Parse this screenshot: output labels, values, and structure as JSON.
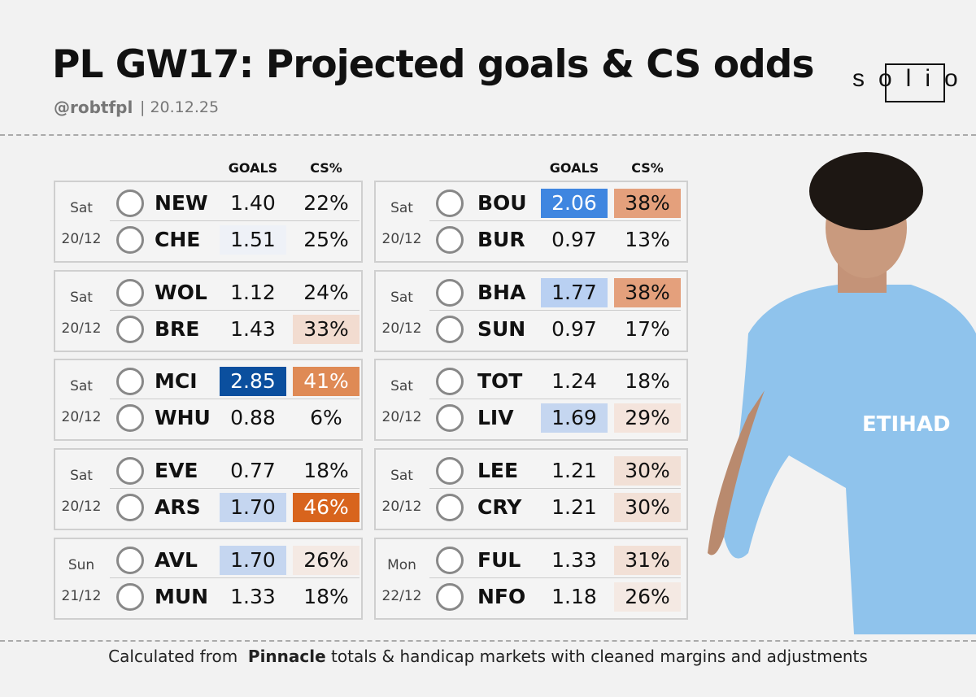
{
  "header": {
    "title": "PL GW17: Projected goals & CS odds",
    "handle": "@robtfpl",
    "date": "| 20.12.25",
    "logo": "solio"
  },
  "tables": [
    {
      "headers": [
        "GOALS",
        "CS%"
      ],
      "matches": [
        {
          "day": "Sat",
          "date": "20/12",
          "teams": [
            {
              "code": "NEW",
              "goals": {
                "text": "1.40"
              },
              "cs": {
                "text": "22%"
              }
            },
            {
              "code": "CHE",
              "goals": {
                "text": "1.51",
                "bg": "#eef1f7"
              },
              "cs": {
                "text": "25%"
              }
            }
          ]
        },
        {
          "day": "Sat",
          "date": "20/12",
          "teams": [
            {
              "code": "WOL",
              "goals": {
                "text": "1.12"
              },
              "cs": {
                "text": "24%"
              }
            },
            {
              "code": "BRE",
              "goals": {
                "text": "1.43"
              },
              "cs": {
                "text": "33%",
                "bg": "#f2dcd0"
              }
            }
          ]
        },
        {
          "day": "Sat",
          "date": "20/12",
          "teams": [
            {
              "code": "MCI",
              "goals": {
                "text": "2.85",
                "bg": "#0b4f9e",
                "fg": "#ffffff"
              },
              "cs": {
                "text": "41%",
                "bg": "#df8a55",
                "fg": "#ffffff"
              }
            },
            {
              "code": "WHU",
              "goals": {
                "text": "0.88"
              },
              "cs": {
                "text": "6%"
              }
            }
          ]
        },
        {
          "day": "Sat",
          "date": "20/12",
          "teams": [
            {
              "code": "EVE",
              "goals": {
                "text": "0.77"
              },
              "cs": {
                "text": "18%"
              }
            },
            {
              "code": "ARS",
              "goals": {
                "text": "1.70",
                "bg": "#c5d6f0"
              },
              "cs": {
                "text": "46%",
                "bg": "#d8641d",
                "fg": "#ffffff"
              }
            }
          ]
        },
        {
          "day": "Sun",
          "date": "21/12",
          "teams": [
            {
              "code": "AVL",
              "goals": {
                "text": "1.70",
                "bg": "#c5d6f0"
              },
              "cs": {
                "text": "26%",
                "bg": "#f4e9e3"
              }
            },
            {
              "code": "MUN",
              "goals": {
                "text": "1.33"
              },
              "cs": {
                "text": "18%"
              }
            }
          ]
        }
      ]
    },
    {
      "headers": [
        "GOALS",
        "CS%"
      ],
      "matches": [
        {
          "day": "Sat",
          "date": "20/12",
          "teams": [
            {
              "code": "BOU",
              "goals": {
                "text": "2.06",
                "bg": "#3f86e0",
                "fg": "#ffffff"
              },
              "cs": {
                "text": "38%",
                "bg": "#e4a07c"
              }
            },
            {
              "code": "BUR",
              "goals": {
                "text": "0.97"
              },
              "cs": {
                "text": "13%"
              }
            }
          ]
        },
        {
          "day": "Sat",
          "date": "20/12",
          "teams": [
            {
              "code": "BHA",
              "goals": {
                "text": "1.77",
                "bg": "#b9d0f2"
              },
              "cs": {
                "text": "38%",
                "bg": "#e4a07c"
              }
            },
            {
              "code": "SUN",
              "goals": {
                "text": "0.97"
              },
              "cs": {
                "text": "17%"
              }
            }
          ]
        },
        {
          "day": "Sat",
          "date": "20/12",
          "teams": [
            {
              "code": "TOT",
              "goals": {
                "text": "1.24"
              },
              "cs": {
                "text": "18%"
              }
            },
            {
              "code": "LIV",
              "goals": {
                "text": "1.69",
                "bg": "#c5d6f0"
              },
              "cs": {
                "text": "29%",
                "bg": "#f4e4dc"
              }
            }
          ]
        },
        {
          "day": "Sat",
          "date": "20/12",
          "teams": [
            {
              "code": "LEE",
              "goals": {
                "text": "1.21"
              },
              "cs": {
                "text": "30%",
                "bg": "#f2e0d6"
              }
            },
            {
              "code": "CRY",
              "goals": {
                "text": "1.21"
              },
              "cs": {
                "text": "30%",
                "bg": "#f2e0d6"
              }
            }
          ]
        },
        {
          "day": "Mon",
          "date": "22/12",
          "teams": [
            {
              "code": "FUL",
              "goals": {
                "text": "1.33"
              },
              "cs": {
                "text": "31%",
                "bg": "#f2e0d6"
              }
            },
            {
              "code": "NFO",
              "goals": {
                "text": "1.18"
              },
              "cs": {
                "text": "26%",
                "bg": "#f4e9e3"
              }
            }
          ]
        }
      ]
    }
  ],
  "footer": {
    "lead": "Calculated from",
    "bold": "Pinnacle",
    "rest": "totals & handicap markets with cleaned margins and adjustments"
  }
}
